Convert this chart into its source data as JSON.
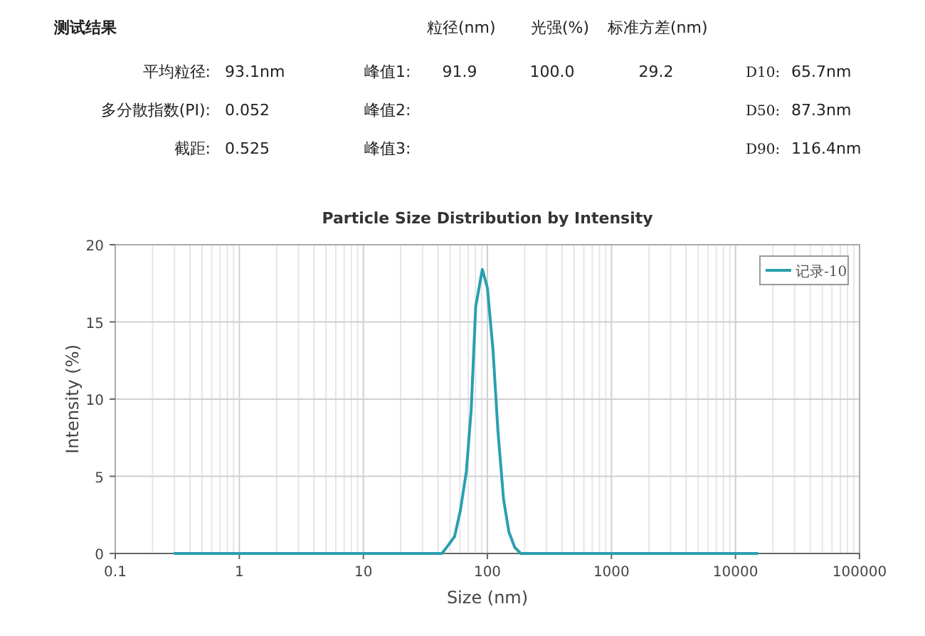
{
  "chart_data": {
    "type": "line",
    "title": "Particle Size Distribution by Intensity",
    "xlabel": "Size (nm)",
    "ylabel": "Intensity (%)",
    "annotations": [
      "测试结果",
      "粒径(nm)",
      "光强(%)",
      "标准方差(nm)",
      "平均粒径:",
      "93.1nm",
      "峰值1:",
      "91.9",
      "100.0",
      "29.2",
      "D10:",
      "65.7nm",
      "多分散指数(PI):",
      "0.052",
      "峰值2:",
      "D50:",
      "87.3nm",
      "截距:",
      "0.525",
      "峰值3:",
      "D90:",
      "116.4nm"
    ],
    "log": "x",
    "xlim": [
      0.1,
      100000
    ],
    "xticks": [
      0.1,
      1,
      10,
      100,
      1000,
      10000,
      100000
    ],
    "ylim": [
      0,
      20
    ],
    "yticks": [
      0,
      5,
      10,
      15,
      20
    ],
    "grid": true,
    "legend": "top right",
    "marker": "none",
    "line_style": "solid",
    "series": [
      {
        "name": "记录-10",
        "color": "#2a9fb0",
        "x": [
          0.3,
          1,
          10,
          30,
          43,
          48,
          54.4,
          60.6,
          67.6,
          74,
          80.5,
          91,
          100,
          110.9,
          121.7,
          135,
          149,
          166,
          186,
          300,
          1000,
          10000,
          15000
        ],
        "values": [
          0,
          0,
          0,
          0,
          0,
          0.5,
          1.1,
          2.8,
          5.3,
          9.3,
          16,
          18.4,
          17.2,
          13.2,
          7.9,
          3.5,
          1.4,
          0.4,
          0,
          0,
          0,
          0,
          0
        ]
      }
    ]
  }
}
